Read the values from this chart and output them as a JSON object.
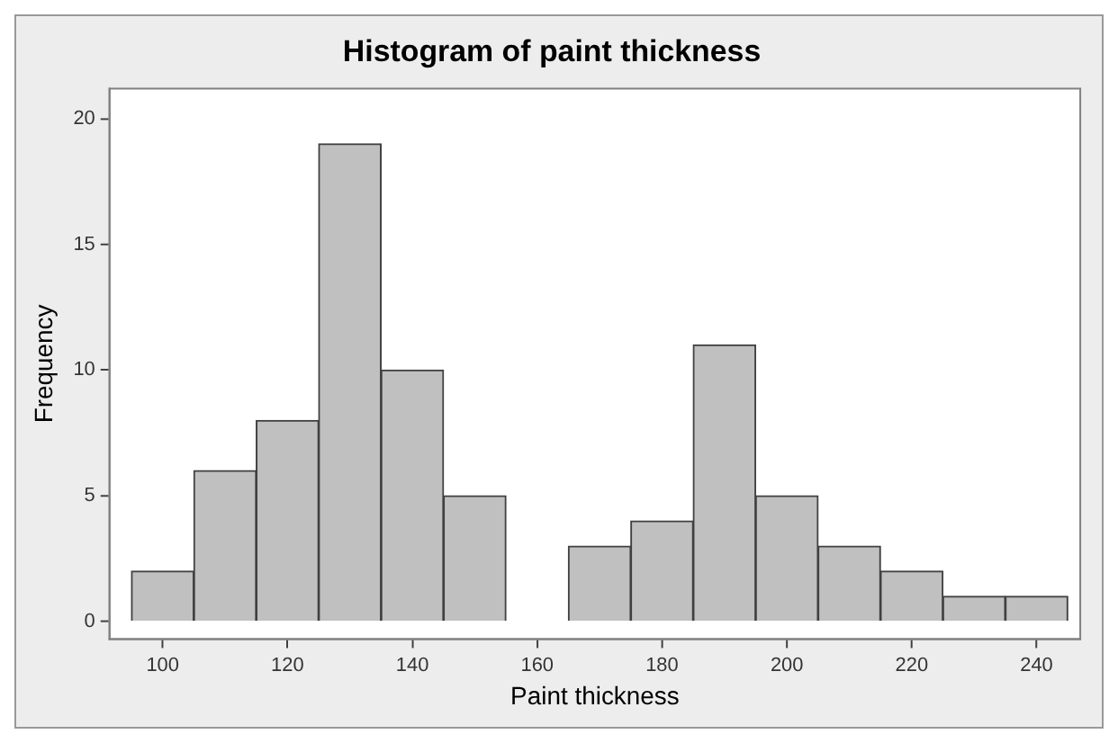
{
  "chart_data": {
    "type": "histogram",
    "title": "Histogram of paint thickness",
    "xlabel": "Paint thickness",
    "ylabel": "Frequency",
    "bins": [
      95,
      105,
      115,
      125,
      135,
      145,
      155,
      165,
      175,
      185,
      195,
      205,
      215,
      225,
      235,
      245
    ],
    "values": [
      2,
      6,
      8,
      19,
      10,
      5,
      0,
      3,
      4,
      11,
      5,
      3,
      2,
      1,
      1
    ],
    "color": "#c0c0c0",
    "xlim": [
      91.5,
      247
    ],
    "xticks": [
      100,
      120,
      140,
      160,
      180,
      200,
      220,
      240
    ],
    "ylim": [
      -0.7,
      21.2
    ],
    "yticks": [
      0,
      5,
      10,
      15,
      20
    ],
    "grid": false,
    "legend": false
  }
}
